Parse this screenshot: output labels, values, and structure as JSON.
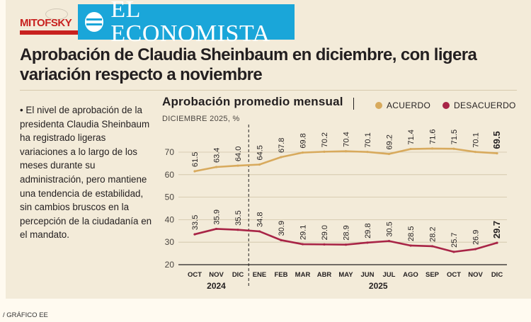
{
  "brand": {
    "mitofsky": "MITOFSKY",
    "economista": "EL ECONOMISTA"
  },
  "headline": "Aprobación de Claudia Sheinbaum en diciembre, con ligera variación respecto a noviembre",
  "body_text": "• El nivel de aprobación de la presidenta Claudia Sheinbaum ha registrado ligeras variaciones a lo largo de los meses durante su administración, pero mantiene una tendencia de estabilidad, sin cambios bruscos en la percepción de la ciudadanía en el mandato.",
  "credit": "/ GRÁFICO EE",
  "colors": {
    "acuerdo": "#d8aa5d",
    "desacuerdo": "#a82446",
    "background_panel": "#f3ebd9",
    "ee_blue": "#1aa6d9",
    "mitofsky_red": "#c8211f"
  },
  "chart_data": {
    "type": "line",
    "title": "Aprobación promedio mensual",
    "subtitle": "DICIEMBRE 2025, %",
    "categories": [
      "OCT",
      "NOV",
      "DIC",
      "ENE",
      "FEB",
      "MAR",
      "ABR",
      "MAY",
      "JUN",
      "JUL",
      "AGO",
      "SEP",
      "OCT",
      "NOV",
      "DIC"
    ],
    "year_groups": [
      {
        "label": "2024",
        "start": 0,
        "end": 2
      },
      {
        "label": "2025",
        "start": 3,
        "end": 14
      }
    ],
    "series": [
      {
        "name": "ACUERDO",
        "color": "#d8aa5d",
        "values": [
          61.5,
          63.4,
          64.0,
          64.5,
          67.8,
          69.8,
          70.2,
          70.4,
          70.1,
          69.2,
          71.4,
          71.6,
          71.5,
          70.1,
          69.5
        ],
        "labels": [
          "61.5",
          "63.4",
          "64.0",
          "64.5",
          "67.8",
          "69.8",
          "70.2",
          "70.4",
          "70.1",
          "69.2",
          "71.4",
          "71.6",
          "71.5",
          "70.1",
          "69.5"
        ]
      },
      {
        "name": "DESACUERDO",
        "color": "#a82446",
        "values": [
          33.5,
          35.9,
          35.5,
          34.8,
          30.9,
          29.1,
          29.0,
          28.9,
          29.8,
          30.5,
          28.5,
          28.2,
          25.7,
          26.9,
          29.7
        ],
        "labels": [
          "33.5",
          "35.9",
          "35.5",
          "34.8",
          "30.9",
          "29.1",
          "29.0",
          "28.9",
          "29.8",
          "30.5",
          "28.5",
          "28.2",
          "25.7",
          "26.9",
          "29.7"
        ]
      }
    ],
    "yticks": [
      20,
      30,
      40,
      50,
      60,
      70
    ],
    "ylim": [
      20,
      75
    ],
    "divider_after_index": 2,
    "highlight_last": true,
    "xlabel": "",
    "ylabel": ""
  }
}
